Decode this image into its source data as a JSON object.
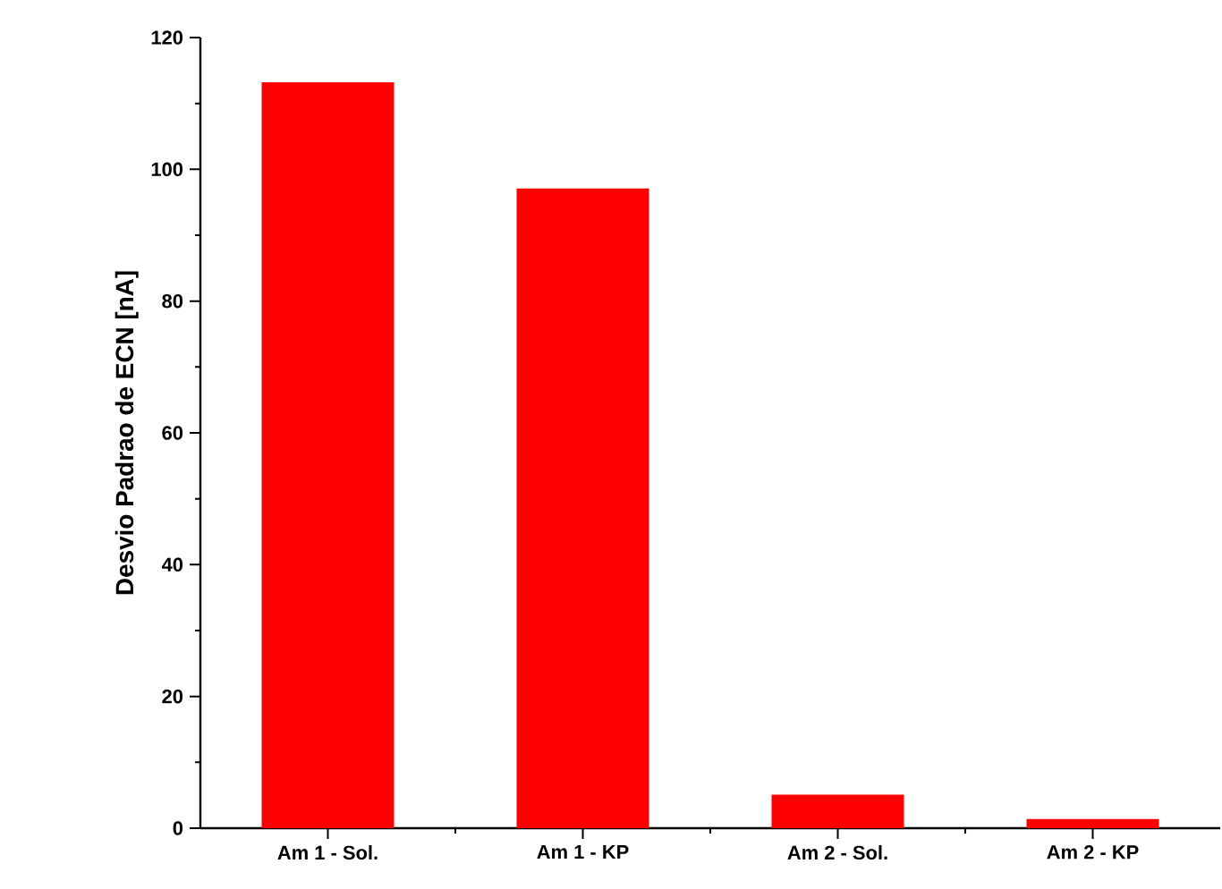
{
  "chart_data": {
    "type": "bar",
    "ylabel": "Desvio Padrao de ECN [nA]",
    "categories": [
      "Am 1 - Sol.",
      "Am 1 - KP",
      "Am 2 - Sol.",
      "Am 2 - KP"
    ],
    "values": [
      113.2,
      97.1,
      5.1,
      1.4
    ],
    "color": "#ff0000",
    "ylim": [
      0,
      120
    ],
    "yticks": [
      0,
      20,
      40,
      60,
      80,
      100,
      120
    ],
    "grid": false
  }
}
